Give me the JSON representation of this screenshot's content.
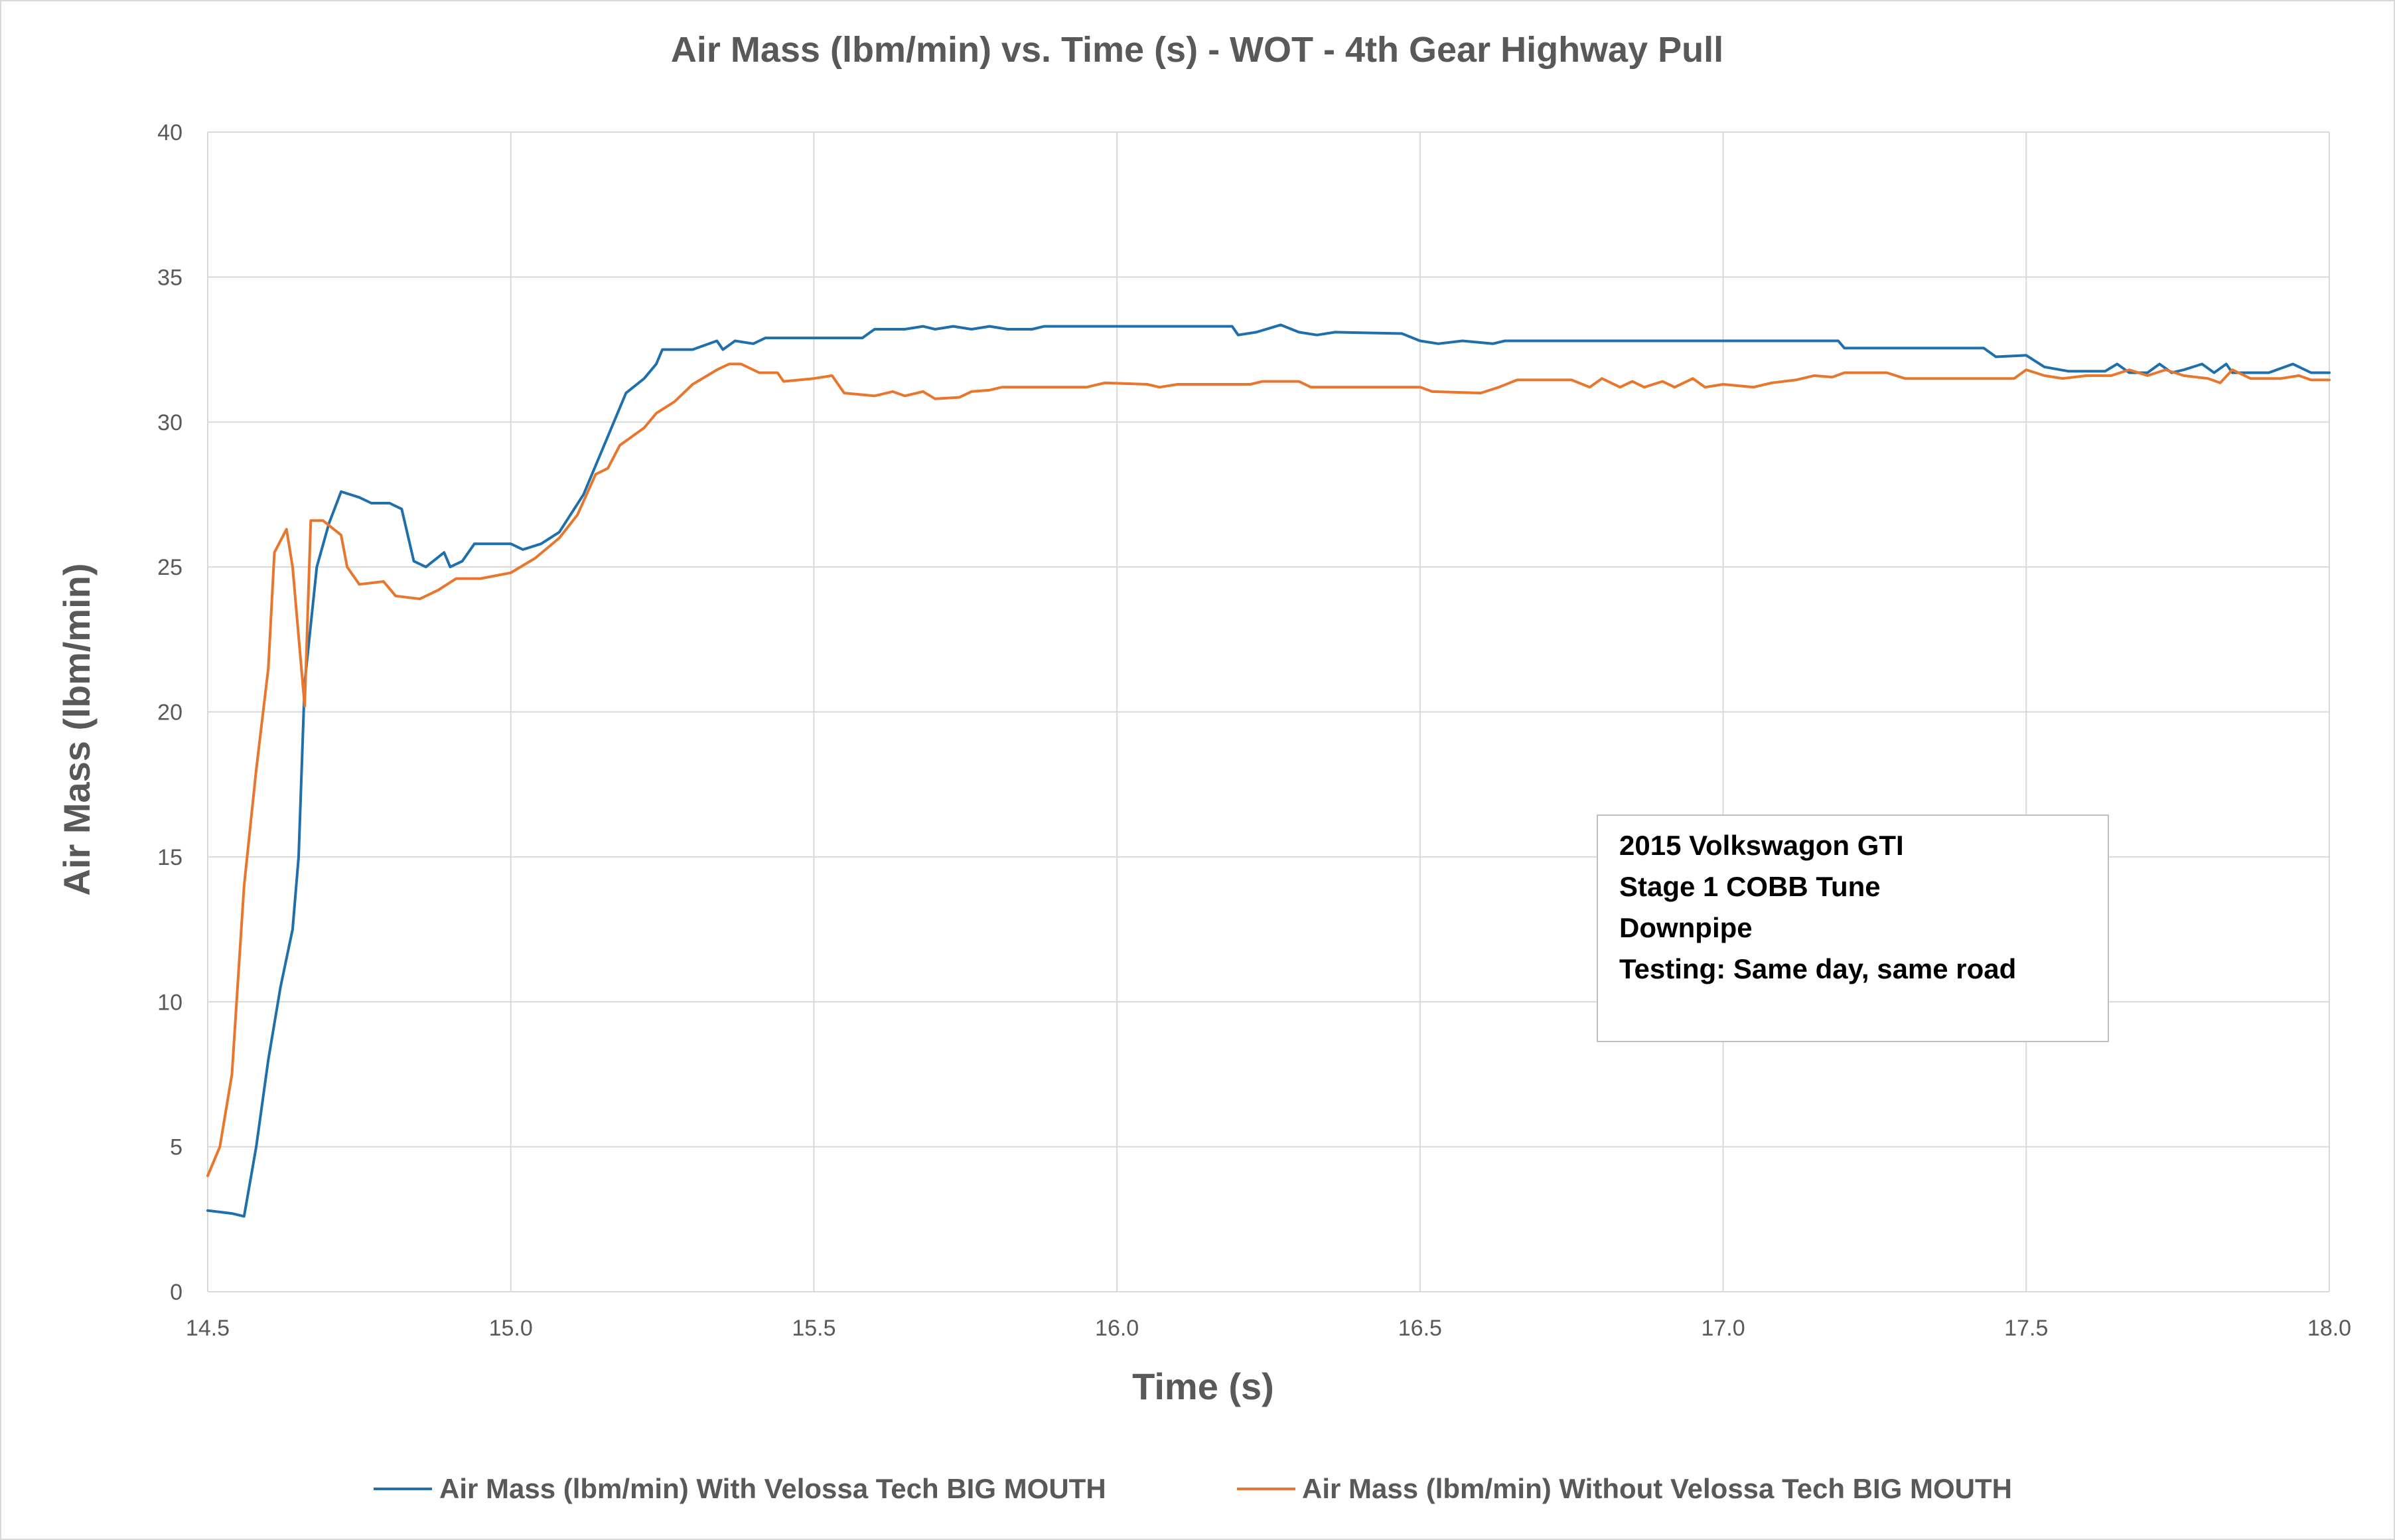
{
  "chart_data": {
    "type": "line",
    "title": "Air Mass (lbm/min) vs. Time (s) - WOT - 4th Gear Highway Pull",
    "xlabel": "Time (s)",
    "ylabel": "Air Mass  (lbm/min)",
    "xlim": [
      14.5,
      18.0
    ],
    "ylim": [
      0,
      40
    ],
    "x_ticks": [
      "14.5",
      "15.0",
      "15.5",
      "16.0",
      "16.5",
      "17.0",
      "17.5",
      "18.0"
    ],
    "y_ticks": [
      "0",
      "5",
      "10",
      "15",
      "20",
      "25",
      "30",
      "35",
      "40"
    ],
    "grid": true,
    "legend_position": "bottom",
    "annotation": {
      "lines": [
        "2015 Volkswagon GTI",
        "Stage 1 COBB Tune",
        "Downpipe",
        "Testing: Same day, same road"
      ]
    },
    "series": [
      {
        "name": "Air Mass (lbm/min) With Velossa Tech BIG MOUTH",
        "color": "#1f6fad",
        "points": [
          [
            14.5,
            2.8
          ],
          [
            14.52,
            2.75
          ],
          [
            14.54,
            2.7
          ],
          [
            14.56,
            2.6
          ],
          [
            14.58,
            5.0
          ],
          [
            14.6,
            8.0
          ],
          [
            14.62,
            10.5
          ],
          [
            14.64,
            12.5
          ],
          [
            14.65,
            15.0
          ],
          [
            14.66,
            21.0
          ],
          [
            14.68,
            25.0
          ],
          [
            14.7,
            26.5
          ],
          [
            14.72,
            27.6
          ],
          [
            14.75,
            27.4
          ],
          [
            14.77,
            27.2
          ],
          [
            14.8,
            27.2
          ],
          [
            14.82,
            27.0
          ],
          [
            14.84,
            25.2
          ],
          [
            14.86,
            25.0
          ],
          [
            14.89,
            25.5
          ],
          [
            14.9,
            25.0
          ],
          [
            14.92,
            25.2
          ],
          [
            14.94,
            25.8
          ],
          [
            15.0,
            25.8
          ],
          [
            15.02,
            25.6
          ],
          [
            15.05,
            25.8
          ],
          [
            15.08,
            26.2
          ],
          [
            15.12,
            27.5
          ],
          [
            15.16,
            29.5
          ],
          [
            15.19,
            31.0
          ],
          [
            15.22,
            31.5
          ],
          [
            15.24,
            32.0
          ],
          [
            15.25,
            32.5
          ],
          [
            15.3,
            32.5
          ],
          [
            15.34,
            32.8
          ],
          [
            15.35,
            32.5
          ],
          [
            15.37,
            32.8
          ],
          [
            15.4,
            32.7
          ],
          [
            15.42,
            32.9
          ],
          [
            15.58,
            32.9
          ],
          [
            15.6,
            33.2
          ],
          [
            15.65,
            33.2
          ],
          [
            15.68,
            33.3
          ],
          [
            15.7,
            33.2
          ],
          [
            15.73,
            33.3
          ],
          [
            15.76,
            33.2
          ],
          [
            15.79,
            33.3
          ],
          [
            15.82,
            33.2
          ],
          [
            15.86,
            33.2
          ],
          [
            15.88,
            33.3
          ],
          [
            16.19,
            33.3
          ],
          [
            16.2,
            33.0
          ],
          [
            16.23,
            33.1
          ],
          [
            16.27,
            33.35
          ],
          [
            16.3,
            33.1
          ],
          [
            16.33,
            33.0
          ],
          [
            16.36,
            33.1
          ],
          [
            16.47,
            33.05
          ],
          [
            16.5,
            32.8
          ],
          [
            16.53,
            32.7
          ],
          [
            16.57,
            32.8
          ],
          [
            16.62,
            32.7
          ],
          [
            16.64,
            32.8
          ],
          [
            17.19,
            32.8
          ],
          [
            17.2,
            32.55
          ],
          [
            17.43,
            32.55
          ],
          [
            17.45,
            32.25
          ],
          [
            17.5,
            32.3
          ],
          [
            17.53,
            31.9
          ],
          [
            17.57,
            31.75
          ],
          [
            17.63,
            31.75
          ],
          [
            17.65,
            32.0
          ],
          [
            17.67,
            31.7
          ],
          [
            17.7,
            31.7
          ],
          [
            17.72,
            32.0
          ],
          [
            17.74,
            31.7
          ],
          [
            17.76,
            31.8
          ],
          [
            17.79,
            32.0
          ],
          [
            17.81,
            31.7
          ],
          [
            17.83,
            32.0
          ],
          [
            17.84,
            31.7
          ],
          [
            17.9,
            31.7
          ],
          [
            17.94,
            32.0
          ],
          [
            17.97,
            31.7
          ],
          [
            18.0,
            31.7
          ]
        ]
      },
      {
        "name": "Air Mass (lbm/min) Without Velossa Tech BIG MOUTH",
        "color": "#e8762d",
        "points": [
          [
            14.5,
            4.0
          ],
          [
            14.52,
            5.0
          ],
          [
            14.54,
            7.5
          ],
          [
            14.56,
            14.0
          ],
          [
            14.58,
            18.0
          ],
          [
            14.6,
            21.5
          ],
          [
            14.61,
            25.5
          ],
          [
            14.63,
            26.3
          ],
          [
            14.64,
            25.0
          ],
          [
            14.66,
            20.2
          ],
          [
            14.67,
            26.6
          ],
          [
            14.69,
            26.6
          ],
          [
            14.72,
            26.1
          ],
          [
            14.73,
            25.0
          ],
          [
            14.75,
            24.4
          ],
          [
            14.79,
            24.5
          ],
          [
            14.81,
            24.0
          ],
          [
            14.85,
            23.9
          ],
          [
            14.88,
            24.2
          ],
          [
            14.91,
            24.6
          ],
          [
            14.95,
            24.6
          ],
          [
            15.0,
            24.8
          ],
          [
            15.04,
            25.3
          ],
          [
            15.08,
            26.0
          ],
          [
            15.11,
            26.8
          ],
          [
            15.14,
            28.2
          ],
          [
            15.16,
            28.4
          ],
          [
            15.18,
            29.2
          ],
          [
            15.22,
            29.8
          ],
          [
            15.24,
            30.3
          ],
          [
            15.27,
            30.7
          ],
          [
            15.3,
            31.3
          ],
          [
            15.34,
            31.8
          ],
          [
            15.36,
            32.0
          ],
          [
            15.38,
            32.0
          ],
          [
            15.41,
            31.7
          ],
          [
            15.44,
            31.7
          ],
          [
            15.45,
            31.4
          ],
          [
            15.5,
            31.5
          ],
          [
            15.53,
            31.6
          ],
          [
            15.55,
            31.0
          ],
          [
            15.6,
            30.9
          ],
          [
            15.63,
            31.05
          ],
          [
            15.65,
            30.9
          ],
          [
            15.68,
            31.05
          ],
          [
            15.7,
            30.8
          ],
          [
            15.74,
            30.85
          ],
          [
            15.76,
            31.05
          ],
          [
            15.79,
            31.1
          ],
          [
            15.81,
            31.2
          ],
          [
            15.95,
            31.2
          ],
          [
            15.98,
            31.35
          ],
          [
            16.05,
            31.3
          ],
          [
            16.07,
            31.2
          ],
          [
            16.1,
            31.3
          ],
          [
            16.22,
            31.3
          ],
          [
            16.24,
            31.4
          ],
          [
            16.3,
            31.4
          ],
          [
            16.32,
            31.2
          ],
          [
            16.5,
            31.2
          ],
          [
            16.52,
            31.05
          ],
          [
            16.6,
            31.0
          ],
          [
            16.63,
            31.2
          ],
          [
            16.66,
            31.45
          ],
          [
            16.75,
            31.45
          ],
          [
            16.78,
            31.2
          ],
          [
            16.8,
            31.5
          ],
          [
            16.83,
            31.2
          ],
          [
            16.85,
            31.4
          ],
          [
            16.87,
            31.2
          ],
          [
            16.9,
            31.4
          ],
          [
            16.92,
            31.2
          ],
          [
            16.95,
            31.5
          ],
          [
            16.97,
            31.2
          ],
          [
            17.0,
            31.3
          ],
          [
            17.05,
            31.2
          ],
          [
            17.08,
            31.35
          ],
          [
            17.12,
            31.45
          ],
          [
            17.15,
            31.6
          ],
          [
            17.18,
            31.55
          ],
          [
            17.2,
            31.7
          ],
          [
            17.27,
            31.7
          ],
          [
            17.3,
            31.5
          ],
          [
            17.48,
            31.5
          ],
          [
            17.5,
            31.8
          ],
          [
            17.53,
            31.6
          ],
          [
            17.56,
            31.5
          ],
          [
            17.6,
            31.6
          ],
          [
            17.64,
            31.6
          ],
          [
            17.67,
            31.8
          ],
          [
            17.7,
            31.6
          ],
          [
            17.73,
            31.8
          ],
          [
            17.76,
            31.6
          ],
          [
            17.8,
            31.5
          ],
          [
            17.82,
            31.35
          ],
          [
            17.84,
            31.8
          ],
          [
            17.87,
            31.5
          ],
          [
            17.92,
            31.5
          ],
          [
            17.95,
            31.6
          ],
          [
            17.97,
            31.45
          ],
          [
            18.0,
            31.45
          ]
        ]
      }
    ]
  }
}
